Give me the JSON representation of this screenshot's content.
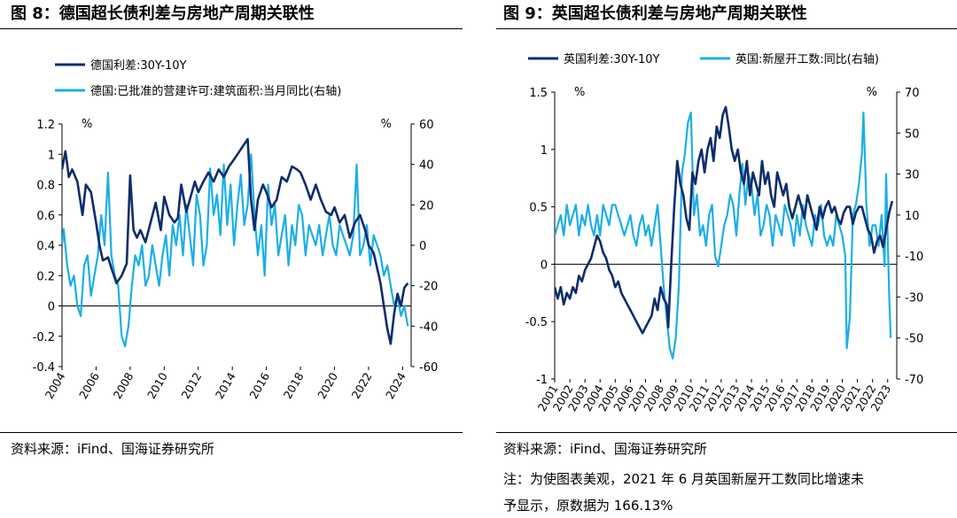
{
  "figures": [
    {
      "title": "图 8：德国超长债利差与房地产周期关联性",
      "source": "资料来源：iFind、国海证券研究所",
      "note": []
    },
    {
      "title": "图 9：英国超长债利差与房地产周期关联性",
      "source": "资料来源：iFind、国海证券研究所",
      "note": [
        "注：为使图表美观，2021 年 6 月英国新屋开工数同比增速未",
        "予显示，原数据为 166.13%"
      ]
    }
  ],
  "colors": {
    "navy": "#0E2C6B",
    "cyan": "#1BAEE8"
  },
  "chart_data": [
    {
      "type": "line",
      "title": "",
      "x_ticks": [
        "2004",
        "2006",
        "2008",
        "2010",
        "2012",
        "2014",
        "2016",
        "2018",
        "2020",
        "2022",
        "2024"
      ],
      "xlim": [
        2004,
        2024.5
      ],
      "y_left": {
        "unit": "%",
        "ylim": [
          -0.4,
          1.2
        ],
        "ticks": [
          "1.2",
          "1",
          "0.8",
          "0.6",
          "0.4",
          "0.2",
          "0",
          "-0.2",
          "-0.4"
        ]
      },
      "y_right": {
        "unit": "%",
        "ylim": [
          -60,
          60
        ],
        "ticks": [
          "60",
          "40",
          "20",
          "0",
          "-20",
          "-40",
          "-60"
        ]
      },
      "legend_position": "top-left",
      "series": [
        {
          "name": "德国利差:30Y-10Y",
          "axis": "left",
          "color": "navy",
          "x": [
            2004.0,
            2004.2,
            2004.4,
            2004.6,
            2004.9,
            2005.2,
            2005.4,
            2005.7,
            2006.0,
            2006.2,
            2006.4,
            2006.7,
            2006.9,
            2007.2,
            2007.5,
            2007.8,
            2008.0,
            2008.2,
            2008.4,
            2008.6,
            2008.9,
            2009.2,
            2009.5,
            2009.8,
            2010.0,
            2010.3,
            2010.6,
            2010.8,
            2011.0,
            2011.3,
            2011.6,
            2011.8,
            2012.0,
            2012.3,
            2012.6,
            2012.9,
            2013.2,
            2013.5,
            2013.8,
            2014.0,
            2014.3,
            2014.6,
            2014.9,
            2015.1,
            2015.3,
            2015.5,
            2015.8,
            2016.0,
            2016.3,
            2016.6,
            2016.9,
            2017.2,
            2017.5,
            2017.8,
            2018.0,
            2018.3,
            2018.6,
            2018.9,
            2019.2,
            2019.5,
            2019.8,
            2020.0,
            2020.3,
            2020.6,
            2020.9,
            2021.2,
            2021.5,
            2021.8,
            2022.0,
            2022.3,
            2022.5,
            2022.7,
            2022.9,
            2023.1,
            2023.3,
            2023.5,
            2023.7,
            2023.9,
            2024.1,
            2024.3
          ],
          "y": [
            0.9,
            1.02,
            0.85,
            0.9,
            0.82,
            0.6,
            0.8,
            0.75,
            0.55,
            0.4,
            0.3,
            0.32,
            0.25,
            0.15,
            0.2,
            0.28,
            0.86,
            0.5,
            0.45,
            0.5,
            0.42,
            0.55,
            0.68,
            0.5,
            0.72,
            0.6,
            0.55,
            0.58,
            0.8,
            0.62,
            0.74,
            0.82,
            0.75,
            0.82,
            0.88,
            0.82,
            0.9,
            0.85,
            0.92,
            0.95,
            1.0,
            1.05,
            1.1,
            0.7,
            0.5,
            0.7,
            0.8,
            0.75,
            0.65,
            0.7,
            0.85,
            0.82,
            0.92,
            0.9,
            0.88,
            0.8,
            0.7,
            0.8,
            0.7,
            0.62,
            0.6,
            0.65,
            0.55,
            0.6,
            0.45,
            0.55,
            0.6,
            0.5,
            0.4,
            0.35,
            0.25,
            0.15,
            0.0,
            -0.15,
            -0.25,
            -0.05,
            0.08,
            0.0,
            0.12,
            0.15
          ]
        },
        {
          "name": "德国:已批准的营建许可:建筑面积:当月同比(右轴)",
          "axis": "right",
          "color": "cyan",
          "x": [
            2004.0,
            2004.1,
            2004.3,
            2004.5,
            2004.7,
            2004.9,
            2005.1,
            2005.3,
            2005.5,
            2005.7,
            2005.9,
            2006.1,
            2006.3,
            2006.5,
            2006.7,
            2006.9,
            2007.1,
            2007.3,
            2007.5,
            2007.7,
            2007.9,
            2008.1,
            2008.3,
            2008.5,
            2008.7,
            2008.9,
            2009.1,
            2009.3,
            2009.5,
            2009.7,
            2009.9,
            2010.1,
            2010.3,
            2010.5,
            2010.7,
            2010.9,
            2011.1,
            2011.3,
            2011.5,
            2011.7,
            2011.9,
            2012.1,
            2012.3,
            2012.5,
            2012.7,
            2012.9,
            2013.1,
            2013.3,
            2013.5,
            2013.7,
            2013.9,
            2014.1,
            2014.3,
            2014.5,
            2014.7,
            2014.9,
            2015.1,
            2015.3,
            2015.5,
            2015.7,
            2015.9,
            2016.1,
            2016.3,
            2016.5,
            2016.7,
            2016.9,
            2017.1,
            2017.3,
            2017.5,
            2017.7,
            2017.9,
            2018.1,
            2018.3,
            2018.5,
            2018.7,
            2018.9,
            2019.1,
            2019.3,
            2019.5,
            2019.7,
            2019.9,
            2020.1,
            2020.3,
            2020.5,
            2020.7,
            2020.9,
            2021.1,
            2021.3,
            2021.5,
            2021.7,
            2021.9,
            2022.1,
            2022.3,
            2022.5,
            2022.7,
            2022.9,
            2023.1,
            2023.3,
            2023.5,
            2023.7,
            2023.9,
            2024.1,
            2024.3
          ],
          "y": [
            0,
            8,
            -10,
            -20,
            -15,
            -30,
            -35,
            -10,
            -5,
            -25,
            -15,
            -5,
            15,
            0,
            36,
            -5,
            -15,
            -20,
            -45,
            -50,
            -40,
            -20,
            -5,
            -10,
            0,
            -20,
            -15,
            0,
            -10,
            -20,
            -5,
            5,
            -15,
            10,
            0,
            15,
            -5,
            20,
            5,
            -10,
            25,
            15,
            -10,
            0,
            38,
            15,
            25,
            5,
            40,
            10,
            30,
            0,
            20,
            35,
            10,
            20,
            45,
            15,
            -5,
            10,
            -15,
            30,
            10,
            20,
            -5,
            5,
            15,
            -10,
            10,
            0,
            20,
            15,
            -5,
            10,
            5,
            0,
            10,
            -5,
            5,
            15,
            0,
            -5,
            10,
            5,
            0,
            -5,
            5,
            40,
            -5,
            0,
            10,
            -10,
            5,
            0,
            -5,
            -15,
            -10,
            -20,
            -30,
            -25,
            -35,
            -30,
            -40
          ]
        }
      ]
    },
    {
      "type": "line",
      "title": "",
      "x_ticks": [
        "2001",
        "2002",
        "2003",
        "2004",
        "2005",
        "2006",
        "2007",
        "2008",
        "2009",
        "2010",
        "2011",
        "2012",
        "2013",
        "2014",
        "2015",
        "2016",
        "2017",
        "2018",
        "2019",
        "2020",
        "2021",
        "2022",
        "2023"
      ],
      "xlim": [
        2001,
        2023.6
      ],
      "y_left": {
        "unit": "%",
        "ylim": [
          -1,
          1.5
        ],
        "ticks": [
          "1.5",
          "1",
          "0.5",
          "0",
          "-0.5",
          "-1"
        ]
      },
      "y_right": {
        "unit": "%",
        "ylim": [
          -70,
          70
        ],
        "ticks": [
          "70",
          "50",
          "30",
          "10",
          "-10",
          "-30",
          "-50",
          "-70"
        ]
      },
      "legend_position": "top",
      "series": [
        {
          "name": "英国利差:30Y-10Y",
          "axis": "left",
          "color": "navy",
          "x": [
            2001.0,
            2001.2,
            2001.4,
            2001.6,
            2001.8,
            2002.0,
            2002.2,
            2002.4,
            2002.6,
            2002.8,
            2003.0,
            2003.2,
            2003.4,
            2003.6,
            2003.8,
            2004.0,
            2004.2,
            2004.4,
            2004.6,
            2004.8,
            2005.0,
            2005.2,
            2005.4,
            2005.6,
            2005.8,
            2006.0,
            2006.2,
            2006.4,
            2006.6,
            2006.8,
            2007.0,
            2007.2,
            2007.4,
            2007.6,
            2007.8,
            2008.0,
            2008.2,
            2008.4,
            2008.5,
            2008.7,
            2008.9,
            2009.1,
            2009.3,
            2009.5,
            2009.7,
            2009.9,
            2010.1,
            2010.3,
            2010.5,
            2010.7,
            2010.9,
            2011.1,
            2011.3,
            2011.5,
            2011.7,
            2011.9,
            2012.1,
            2012.3,
            2012.5,
            2012.7,
            2012.9,
            2013.1,
            2013.3,
            2013.5,
            2013.7,
            2013.9,
            2014.1,
            2014.3,
            2014.5,
            2014.7,
            2014.9,
            2015.1,
            2015.3,
            2015.5,
            2015.7,
            2015.9,
            2016.1,
            2016.3,
            2016.5,
            2016.7,
            2016.9,
            2017.1,
            2017.3,
            2017.5,
            2017.7,
            2017.9,
            2018.1,
            2018.3,
            2018.5,
            2018.7,
            2018.9,
            2019.1,
            2019.3,
            2019.5,
            2019.7,
            2019.9,
            2020.1,
            2020.3,
            2020.5,
            2020.7,
            2020.9,
            2021.1,
            2021.3,
            2021.5,
            2021.7,
            2021.9,
            2022.1,
            2022.3,
            2022.5,
            2022.7,
            2022.9,
            2023.1,
            2023.3
          ],
          "y": [
            -0.2,
            -0.3,
            -0.2,
            -0.35,
            -0.25,
            -0.3,
            -0.2,
            -0.25,
            -0.1,
            -0.15,
            -0.05,
            0.0,
            0.05,
            0.15,
            0.25,
            0.2,
            0.1,
            0.05,
            -0.05,
            -0.1,
            -0.2,
            -0.15,
            -0.25,
            -0.3,
            -0.35,
            -0.4,
            -0.45,
            -0.5,
            -0.55,
            -0.6,
            -0.55,
            -0.5,
            -0.45,
            -0.3,
            -0.4,
            -0.2,
            -0.3,
            -0.35,
            -0.55,
            0.0,
            0.5,
            0.9,
            0.7,
            0.6,
            0.4,
            0.3,
            0.8,
            0.7,
            0.9,
            1.0,
            0.8,
            1.0,
            1.1,
            0.9,
            1.2,
            1.1,
            1.3,
            1.37,
            1.2,
            1.0,
            0.9,
            1.0,
            0.8,
            0.7,
            0.9,
            0.6,
            0.8,
            0.7,
            0.6,
            0.9,
            0.7,
            0.8,
            0.6,
            0.5,
            0.8,
            0.7,
            0.6,
            0.7,
            0.5,
            0.4,
            0.5,
            0.6,
            0.5,
            0.4,
            0.6,
            0.5,
            0.4,
            0.3,
            0.5,
            0.4,
            0.5,
            0.55,
            0.45,
            0.5,
            0.4,
            0.35,
            0.45,
            0.5,
            0.5,
            0.35,
            0.45,
            0.5,
            0.5,
            0.4,
            0.3,
            0.25,
            0.1,
            0.2,
            0.25,
            0.15,
            0.3,
            0.45,
            0.55
          ]
        },
        {
          "name": "英国:新屋开工数:同比(右轴)",
          "axis": "right",
          "color": "cyan",
          "x": [
            2001.0,
            2001.2,
            2001.4,
            2001.6,
            2001.8,
            2002.0,
            2002.2,
            2002.4,
            2002.6,
            2002.8,
            2003.0,
            2003.2,
            2003.4,
            2003.6,
            2003.8,
            2004.0,
            2004.2,
            2004.4,
            2004.6,
            2004.8,
            2005.0,
            2005.2,
            2005.4,
            2005.6,
            2005.8,
            2006.0,
            2006.2,
            2006.4,
            2006.6,
            2006.8,
            2007.0,
            2007.2,
            2007.4,
            2007.6,
            2007.8,
            2008.0,
            2008.2,
            2008.4,
            2008.6,
            2008.8,
            2009.0,
            2009.2,
            2009.4,
            2009.6,
            2009.8,
            2010.0,
            2010.2,
            2010.4,
            2010.6,
            2010.8,
            2011.0,
            2011.2,
            2011.4,
            2011.6,
            2011.8,
            2012.0,
            2012.2,
            2012.4,
            2012.6,
            2012.8,
            2013.0,
            2013.2,
            2013.4,
            2013.6,
            2013.8,
            2014.0,
            2014.2,
            2014.4,
            2014.6,
            2014.8,
            2015.0,
            2015.2,
            2015.4,
            2015.6,
            2015.8,
            2016.0,
            2016.2,
            2016.4,
            2016.6,
            2016.8,
            2017.0,
            2017.2,
            2017.4,
            2017.6,
            2017.8,
            2018.0,
            2018.2,
            2018.4,
            2018.6,
            2018.8,
            2019.0,
            2019.2,
            2019.4,
            2019.6,
            2019.8,
            2020.0,
            2020.2,
            2020.3,
            2020.5,
            2020.7,
            2020.9,
            2021.1,
            2021.3,
            2021.4,
            2021.6,
            2021.8,
            2022.0,
            2022.2,
            2022.4,
            2022.6,
            2022.8,
            2022.9,
            2023.1,
            2023.2
          ],
          "y": [
            0,
            5,
            10,
            0,
            15,
            5,
            10,
            15,
            0,
            10,
            5,
            15,
            5,
            0,
            10,
            0,
            15,
            10,
            5,
            15,
            15,
            10,
            5,
            0,
            5,
            10,
            0,
            -5,
            5,
            10,
            0,
            5,
            -5,
            5,
            15,
            -5,
            -25,
            -40,
            -55,
            -60,
            -50,
            -25,
            30,
            40,
            55,
            60,
            10,
            20,
            0,
            5,
            -5,
            10,
            15,
            -10,
            -15,
            -5,
            5,
            10,
            20,
            15,
            0,
            20,
            35,
            15,
            30,
            25,
            10,
            20,
            0,
            5,
            15,
            10,
            -5,
            10,
            5,
            0,
            15,
            10,
            5,
            -5,
            10,
            0,
            15,
            5,
            0,
            -5,
            10,
            5,
            15,
            0,
            -5,
            0,
            -5,
            10,
            5,
            0,
            -10,
            -55,
            -40,
            10,
            15,
            25,
            40,
            60,
            15,
            -5,
            5,
            5,
            -5,
            10,
            -15,
            30,
            -30,
            -50
          ]
        }
      ]
    }
  ]
}
